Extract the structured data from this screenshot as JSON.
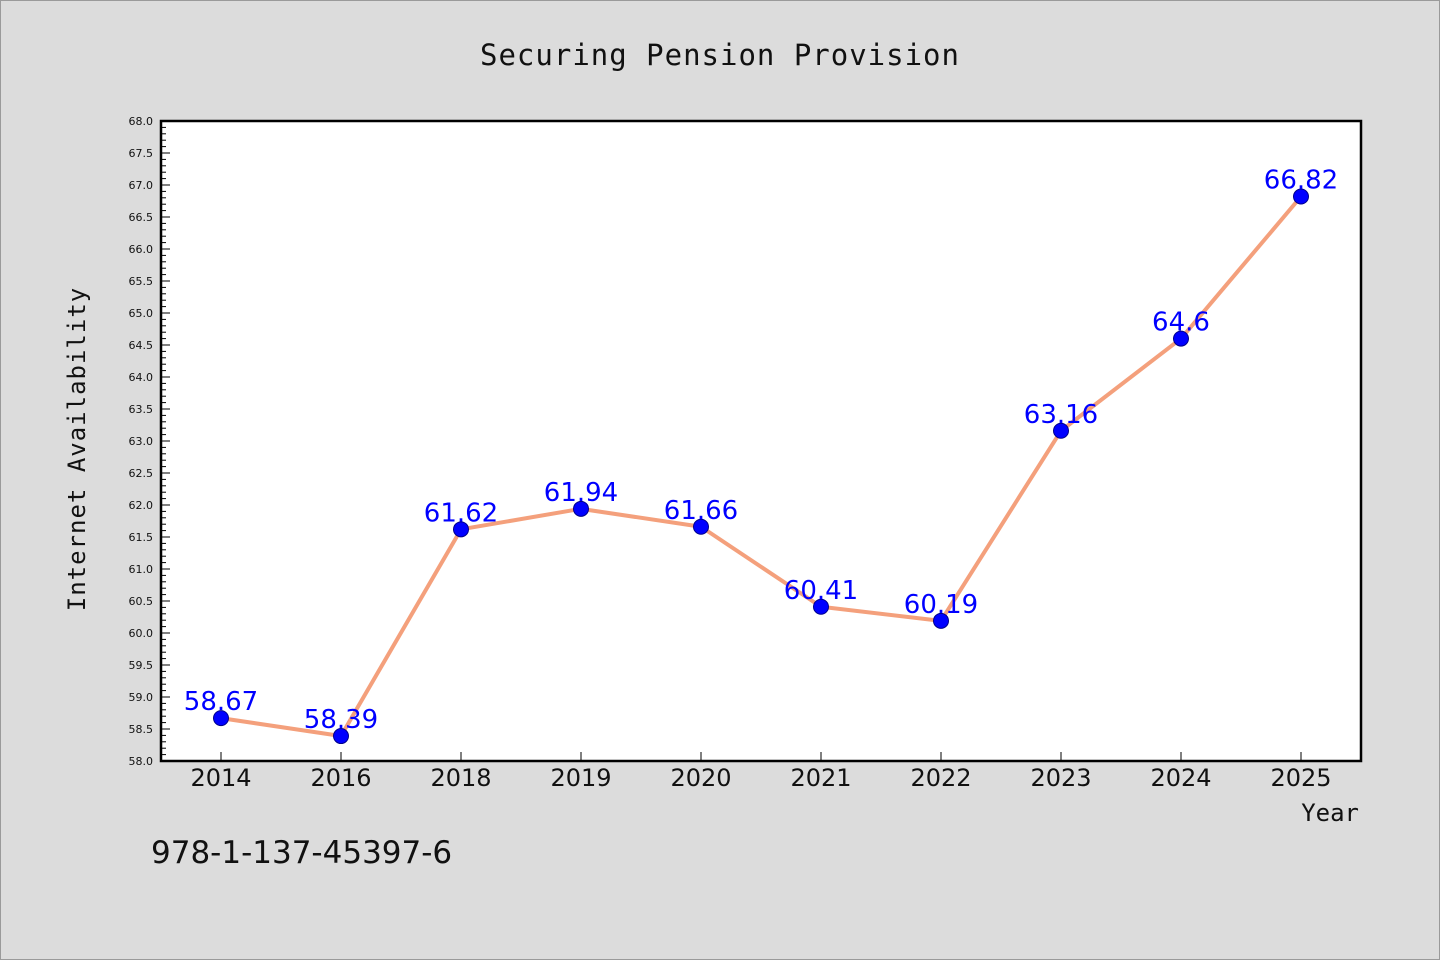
{
  "chart_data": {
    "type": "line",
    "title": "Securing Pension Provision",
    "xlabel": "Year",
    "ylabel": "Internet Availability",
    "categories": [
      "2014",
      "2016",
      "2018",
      "2019",
      "2020",
      "2021",
      "2022",
      "2023",
      "2024",
      "2025"
    ],
    "series": [
      {
        "values": [
          58.67,
          58.39,
          61.62,
          61.94,
          61.66,
          60.41,
          60.19,
          63.16,
          64.6,
          66.82
        ],
        "labels": [
          "58.67",
          "58.39",
          "61.62",
          "61.94",
          "61.66",
          "60.41",
          "60.19",
          "63.16",
          "64.6",
          "66.82"
        ],
        "line_color": "#f4a07c",
        "marker_color": "#0000ff"
      }
    ],
    "ylim": [
      58.0,
      68.0
    ],
    "ytick_step": 0.5,
    "grid": false,
    "legend": "none"
  },
  "footnote": "978-1-137-45397-6"
}
